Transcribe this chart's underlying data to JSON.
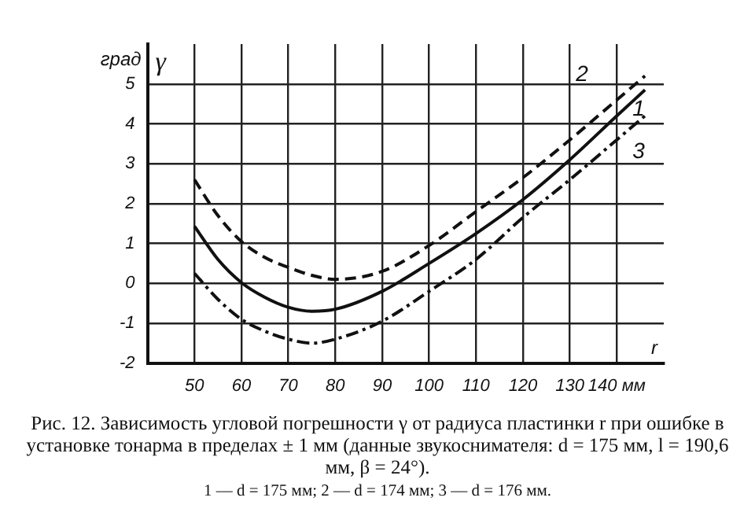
{
  "chart_data": {
    "type": "line",
    "xlabel": "r",
    "ylabel": "град",
    "annotations": [
      "γ",
      "Рис. 12. Зависимость угловой погрешности γ от радиуса пластинки r при ошибке в установке тонарма в пределах ± 1 мм (данные звукоснимателя: d = 175 мм, l = 190,6 мм, β = 24°).",
      "1 — d = 175 мм; 2 — d = 174 мм; 3 — d = 176 мм."
    ],
    "x": [
      50,
      55,
      60,
      65,
      70,
      75,
      80,
      90,
      100,
      110,
      120,
      130,
      140,
      146
    ],
    "series": [
      {
        "name": "1",
        "color": "#111111",
        "line_style": "solid",
        "values": [
          1.43,
          0.6,
          0.02,
          -0.35,
          -0.6,
          -0.7,
          -0.65,
          -0.2,
          0.5,
          1.25,
          2.1,
          3.1,
          4.2,
          4.85
        ]
      },
      {
        "name": "2",
        "color": "#111111",
        "line_style": "dashed",
        "values": [
          2.6,
          1.7,
          1.05,
          0.65,
          0.4,
          0.2,
          0.1,
          0.3,
          0.95,
          1.8,
          2.65,
          3.6,
          4.6,
          5.2
        ]
      },
      {
        "name": "3",
        "color": "#111111",
        "line_style": "dashdot",
        "values": [
          0.25,
          -0.4,
          -0.9,
          -1.2,
          -1.4,
          -1.5,
          -1.4,
          -0.95,
          -0.2,
          0.6,
          1.65,
          2.6,
          3.6,
          4.2
        ]
      }
    ],
    "xlim": [
      40,
      150
    ],
    "xticks": [
      50,
      60,
      70,
      80,
      90,
      100,
      110,
      120,
      130,
      {
        "value": 140,
        "label": "140 мм"
      }
    ],
    "ylim": [
      -2,
      6
    ],
    "yticks": [
      -2,
      -1,
      0,
      1,
      2,
      3,
      4,
      5
    ],
    "grid": true,
    "legend": false,
    "marker": "none"
  }
}
